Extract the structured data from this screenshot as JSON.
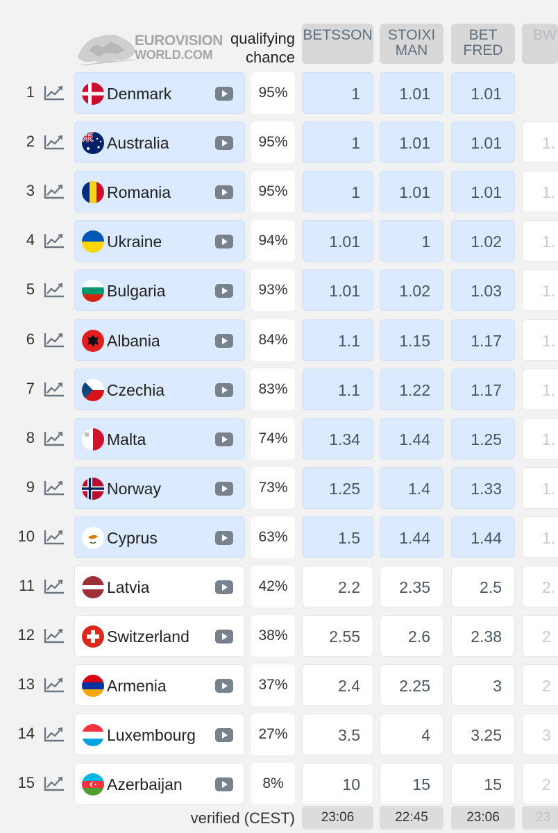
{
  "header": {
    "logo_line1": "EUROVISION",
    "logo_line2": "WORLD.COM",
    "qualifying_line1": "qualifying",
    "qualifying_line2": "chance",
    "bookmakers": [
      {
        "line1": "BETSSON",
        "line2": ""
      },
      {
        "line1": "STOIXI",
        "line2": "MAN"
      },
      {
        "line1": "BET",
        "line2": "FRED"
      },
      {
        "line1": "BW",
        "line2": ""
      }
    ]
  },
  "rows": [
    {
      "rank": "1",
      "country": "Denmark",
      "chance": "95%",
      "odds": [
        "1",
        "1.01",
        "1.01",
        ""
      ],
      "qualified": true,
      "flag": "denmark-flag"
    },
    {
      "rank": "2",
      "country": "Australia",
      "chance": "95%",
      "odds": [
        "1",
        "1.01",
        "1.01",
        "1."
      ],
      "qualified": true,
      "flag": "australia-flag"
    },
    {
      "rank": "3",
      "country": "Romania",
      "chance": "95%",
      "odds": [
        "1",
        "1.01",
        "1.01",
        "1."
      ],
      "qualified": true,
      "flag": "romania-flag"
    },
    {
      "rank": "4",
      "country": "Ukraine",
      "chance": "94%",
      "odds": [
        "1.01",
        "1",
        "1.02",
        "1."
      ],
      "qualified": true,
      "flag": "ukraine-flag"
    },
    {
      "rank": "5",
      "country": "Bulgaria",
      "chance": "93%",
      "odds": [
        "1.01",
        "1.02",
        "1.03",
        "1."
      ],
      "qualified": true,
      "flag": "bulgaria-flag"
    },
    {
      "rank": "6",
      "country": "Albania",
      "chance": "84%",
      "odds": [
        "1.1",
        "1.15",
        "1.17",
        "1."
      ],
      "qualified": true,
      "flag": "albania-flag"
    },
    {
      "rank": "7",
      "country": "Czechia",
      "chance": "83%",
      "odds": [
        "1.1",
        "1.22",
        "1.17",
        "1."
      ],
      "qualified": true,
      "flag": "czechia-flag"
    },
    {
      "rank": "8",
      "country": "Malta",
      "chance": "74%",
      "odds": [
        "1.34",
        "1.44",
        "1.25",
        "1."
      ],
      "qualified": true,
      "flag": "malta-flag"
    },
    {
      "rank": "9",
      "country": "Norway",
      "chance": "73%",
      "odds": [
        "1.25",
        "1.4",
        "1.33",
        "1."
      ],
      "qualified": true,
      "flag": "norway-flag"
    },
    {
      "rank": "10",
      "country": "Cyprus",
      "chance": "63%",
      "odds": [
        "1.5",
        "1.44",
        "1.44",
        "1."
      ],
      "qualified": true,
      "flag": "cyprus-flag"
    },
    {
      "rank": "11",
      "country": "Latvia",
      "chance": "42%",
      "odds": [
        "2.2",
        "2.35",
        "2.5",
        "2."
      ],
      "qualified": false,
      "flag": "latvia-flag"
    },
    {
      "rank": "12",
      "country": "Switzerland",
      "chance": "38%",
      "odds": [
        "2.55",
        "2.6",
        "2.38",
        "2"
      ],
      "qualified": false,
      "flag": "switzerland-flag"
    },
    {
      "rank": "13",
      "country": "Armenia",
      "chance": "37%",
      "odds": [
        "2.4",
        "2.25",
        "3",
        "2"
      ],
      "qualified": false,
      "flag": "armenia-flag"
    },
    {
      "rank": "14",
      "country": "Luxembourg",
      "chance": "27%",
      "odds": [
        "3.5",
        "4",
        "3.25",
        "3"
      ],
      "qualified": false,
      "flag": "luxembourg-flag"
    },
    {
      "rank": "15",
      "country": "Azerbaijan",
      "chance": "8%",
      "odds": [
        "10",
        "15",
        "15",
        "2"
      ],
      "qualified": false,
      "flag": "azerbaijan-flag"
    }
  ],
  "footer": {
    "verified_label": "verified (CEST)",
    "times": [
      "23:06",
      "22:45",
      "23:06",
      "23"
    ]
  },
  "colors": {
    "qualified_bg": "#dbeafe",
    "non_qualified_bg": "#ffffff",
    "header_bookmaker_bg": "#d8d8d8"
  },
  "icons": {
    "trend": "trend-chart-icon",
    "play": "video-play-icon"
  }
}
